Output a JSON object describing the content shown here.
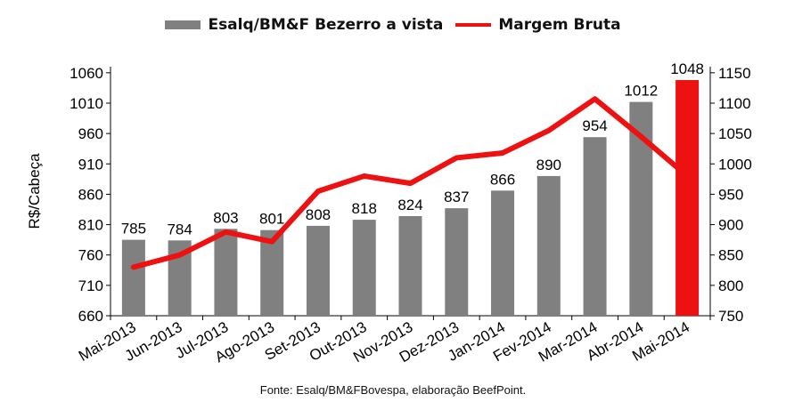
{
  "chart_data": {
    "type": "bar+line",
    "categories": [
      "Mai-2013",
      "Jun-2013",
      "Jul-2013",
      "Ago-2013",
      "Set-2013",
      "Out-2013",
      "Nov-2013",
      "Dez-2013",
      "Jan-2014",
      "Fev-2014",
      "Mar-2014",
      "Abr-2014",
      "Mai-2014"
    ],
    "series": [
      {
        "name": "Esalq/BM&F Bezerro a vista",
        "type": "bar",
        "axis": "left",
        "values": [
          785,
          784,
          803,
          801,
          808,
          818,
          824,
          837,
          866,
          890,
          954,
          1012,
          1048
        ],
        "data_labels": [
          "785",
          "784",
          "803",
          "801",
          "808",
          "818",
          "824",
          "837",
          "866",
          "890",
          "954",
          "1012",
          "1048"
        ],
        "color": "#808080",
        "highlight_color": "#ee1111"
      },
      {
        "name": "Margem Bruta",
        "type": "line",
        "axis": "right",
        "values": [
          830,
          850,
          888,
          872,
          955,
          980,
          968,
          1010,
          1018,
          1055,
          1107,
          1045,
          980
        ],
        "color": "#ee1111"
      }
    ],
    "ylabel": "R$/Cabeça",
    "ylim": [
      660,
      1070
    ],
    "y_ticks": [
      "660",
      "710",
      "760",
      "810",
      "860",
      "910",
      "960",
      "1010",
      "1060"
    ],
    "y2lim": [
      750,
      1160
    ],
    "y2_ticks": [
      "750",
      "800",
      "850",
      "900",
      "950",
      "1000",
      "1050",
      "1100",
      "1150"
    ],
    "grid": false,
    "legend_position": "top-center",
    "source": "Fonte: Esalq/BM&FBovespa, elaboração BeefPoint."
  }
}
